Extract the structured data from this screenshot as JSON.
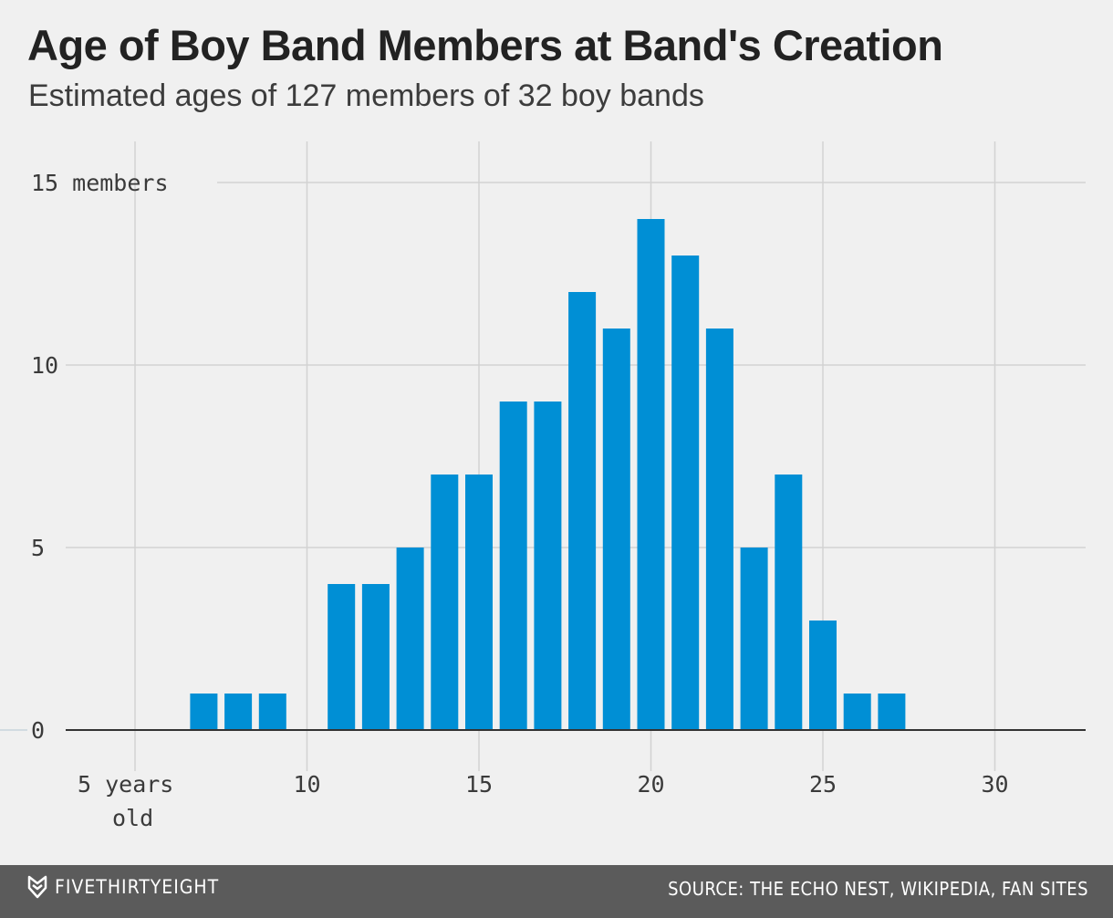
{
  "chart_data": {
    "type": "bar",
    "title": "Age of Boy Band Members at Band's Creation",
    "subtitle": "Estimated ages of 127 members of 32 boy bands",
    "xlabel": "years old",
    "ylabel": "members",
    "x": [
      7,
      8,
      9,
      11,
      12,
      13,
      14,
      15,
      16,
      17,
      18,
      19,
      20,
      21,
      22,
      23,
      24,
      25,
      26,
      27
    ],
    "values": [
      1,
      1,
      1,
      4,
      4,
      5,
      7,
      7,
      9,
      9,
      12,
      11,
      14,
      13,
      11,
      5,
      7,
      3,
      1,
      1
    ],
    "xlim": [
      3,
      32.5
    ],
    "ylim": [
      0,
      16
    ],
    "xticks": [
      5,
      10,
      15,
      20,
      25,
      30
    ],
    "yticks": [
      0,
      5,
      10,
      15
    ],
    "xtick_labels": [
      "5 years",
      "10",
      "15",
      "20",
      "25",
      "30"
    ],
    "xtick_first_suffix": "old",
    "ytick_labels": [
      "0",
      "5",
      "10",
      "15 members"
    ],
    "bar_color": "#008fd5",
    "grid": true
  },
  "footer": {
    "brand": "FIVETHIRTYEIGHT",
    "source": "SOURCE: THE ECHO NEST, WIKIPEDIA, FAN SITES"
  }
}
